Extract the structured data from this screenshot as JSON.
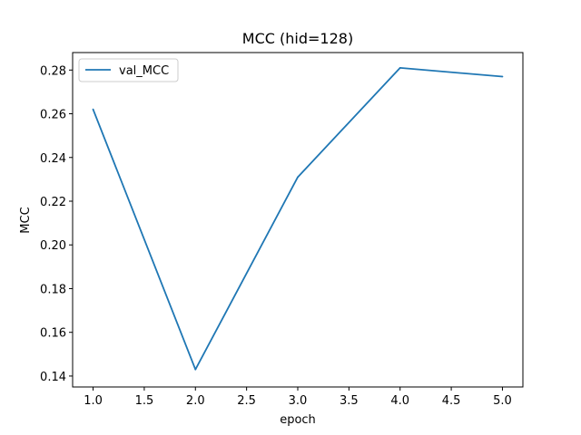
{
  "chart_data": {
    "type": "line",
    "title": "MCC (hid=128)",
    "xlabel": "epoch",
    "ylabel": "MCC",
    "xlim": [
      0.8,
      5.2
    ],
    "ylim": [
      0.135,
      0.288
    ],
    "xticks": [
      1.0,
      1.5,
      2.0,
      2.5,
      3.0,
      3.5,
      4.0,
      4.5,
      5.0
    ],
    "xtick_labels": [
      "1.0",
      "1.5",
      "2.0",
      "2.5",
      "3.0",
      "3.5",
      "4.0",
      "4.5",
      "5.0"
    ],
    "yticks": [
      0.14,
      0.16,
      0.18,
      0.2,
      0.22,
      0.24,
      0.26,
      0.28
    ],
    "ytick_labels": [
      "0.14",
      "0.16",
      "0.18",
      "0.20",
      "0.22",
      "0.24",
      "0.26",
      "0.28"
    ],
    "grid": false,
    "legend_position": "top-left",
    "series": [
      {
        "name": "val_MCC",
        "color": "#1f77b4",
        "x": [
          1,
          2,
          3,
          4,
          5
        ],
        "y": [
          0.262,
          0.143,
          0.231,
          0.281,
          0.277
        ]
      }
    ]
  }
}
